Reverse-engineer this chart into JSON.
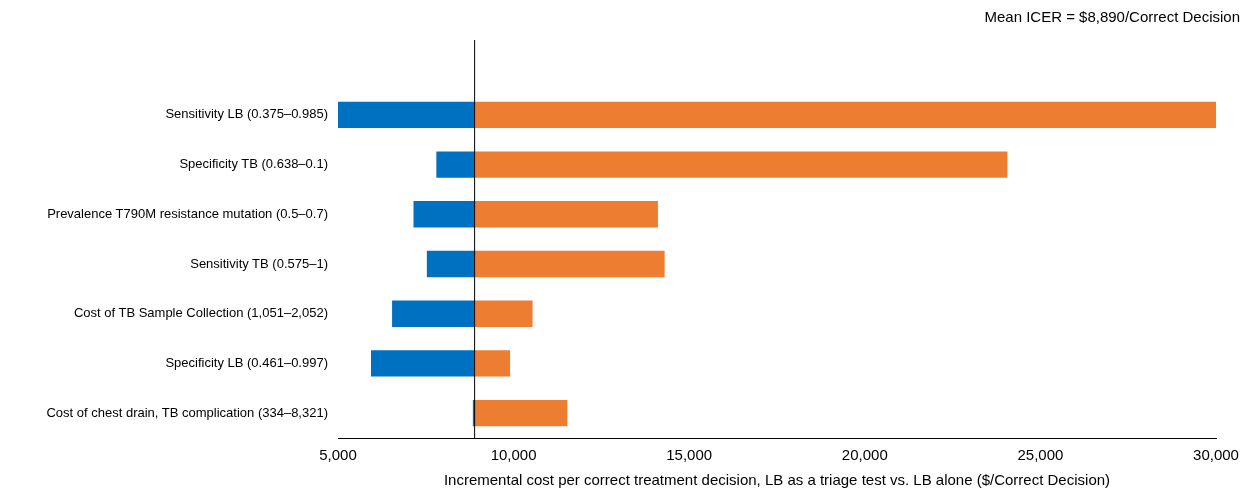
{
  "chart_data": {
    "type": "bar",
    "orientation": "horizontal",
    "grid": false,
    "legend": false,
    "categories": [
      "Sensitivity LB (0.375–0.985)",
      "Specificity TB (0.638–0.1)",
      "Prevalence T790M resistance mutation (0.5–0.7)",
      "Sensitivity TB (0.575–1)",
      "Cost of TB Sample Collection (1,051–2,052)",
      "Specificity LB (0.461–0.997)",
      "Cost of chest drain, TB complication (334–8,321)"
    ],
    "series": [
      {
        "color": "#0070c0",
        "base": [
          5000,
          7800,
          7150,
          7530,
          6540,
          5940,
          8840
        ],
        "values": [
          3890,
          1090,
          1740,
          1360,
          2350,
          2950,
          50
        ]
      },
      {
        "color": "#ed7d31",
        "base": [
          8890,
          8890,
          8890,
          8890,
          8890,
          8890,
          8890
        ],
        "values": [
          21110,
          15170,
          5220,
          5410,
          1650,
          1010,
          2640
        ]
      }
    ],
    "xlim": [
      5000,
      30000
    ],
    "xticks": [
      {
        "value": 5000,
        "label": "5,000"
      },
      {
        "value": 10000,
        "label": "10,000"
      },
      {
        "value": 15000,
        "label": "15,000"
      },
      {
        "value": 20000,
        "label": "20,000"
      },
      {
        "value": 25000,
        "label": "25,000"
      },
      {
        "value": 30000,
        "label": "30,000"
      }
    ],
    "xlabel": "Incremental cost per correct treatment decision, LB as a triage test vs. LB alone ($/Correct Decision)",
    "ref_lines": [
      {
        "axis": "x",
        "value": 8890,
        "label": "Mean ICER = $8,890/Correct Decision",
        "color": "#000000"
      }
    ]
  }
}
